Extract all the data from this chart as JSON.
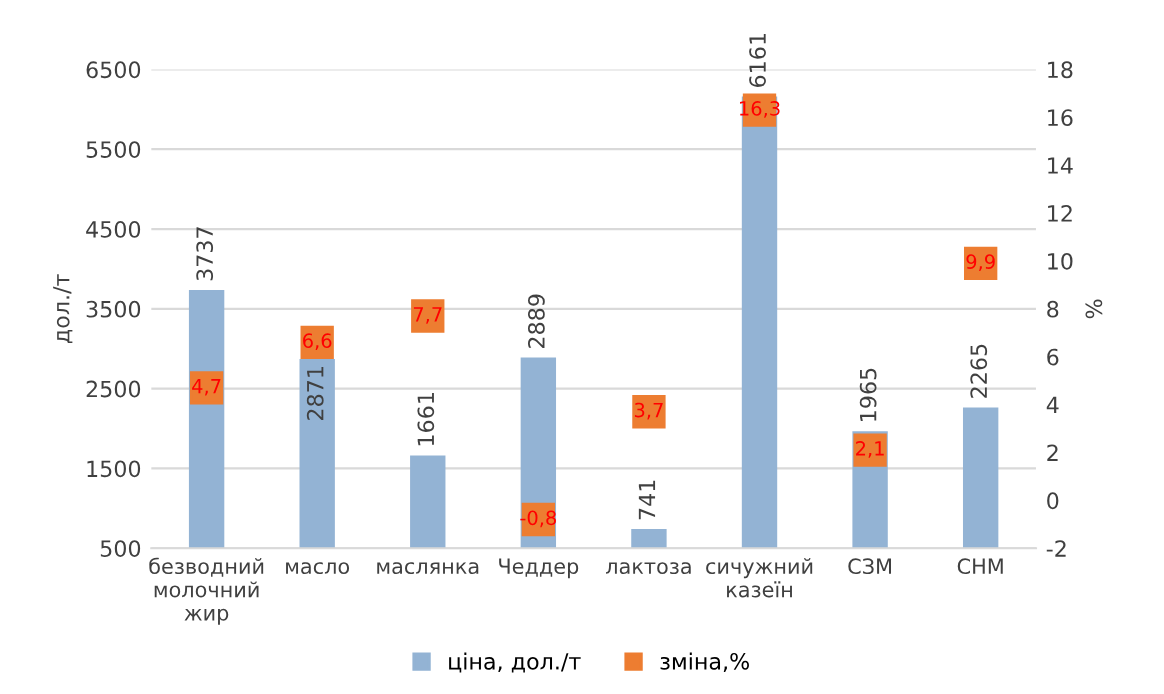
{
  "chart_data": {
    "type": "bar",
    "categories": [
      "безводний молочний жир",
      "масло",
      "маслянка",
      "Чеддер",
      "лактоза",
      "сичужний казеїн",
      "СЗМ",
      "СНМ"
    ],
    "ylabel": "дол./т",
    "y2label": "%",
    "series": [
      {
        "name": "ціна, дол./т",
        "color": "#93b3d4",
        "values": [
          3737,
          2871,
          1661,
          2889,
          741,
          6161,
          1965,
          2265
        ],
        "value_labels": [
          "3737",
          "2871",
          "1661",
          "2889",
          "741",
          "6161",
          "1965",
          "2265"
        ]
      },
      {
        "name": "зміна,%",
        "type": "scatter",
        "axis": "y2",
        "marker": "square",
        "color": "#ed7d31",
        "values": [
          4.7,
          6.6,
          7.7,
          -0.8,
          3.7,
          16.3,
          2.1,
          9.9
        ],
        "value_labels": [
          "4,7",
          "6,6",
          "7,7",
          "-0,8",
          "3,7",
          "16,3",
          "2,1",
          "9,9"
        ]
      }
    ],
    "ylim": [
      500,
      6500
    ],
    "yticks": [
      500,
      1500,
      2500,
      3500,
      4500,
      5500,
      6500
    ],
    "y2lim": [
      -2,
      18
    ],
    "y2ticks": [
      -2,
      0,
      2,
      4,
      6,
      8,
      10,
      12,
      14,
      16,
      18
    ],
    "grid": "y",
    "legend": "bottom"
  }
}
